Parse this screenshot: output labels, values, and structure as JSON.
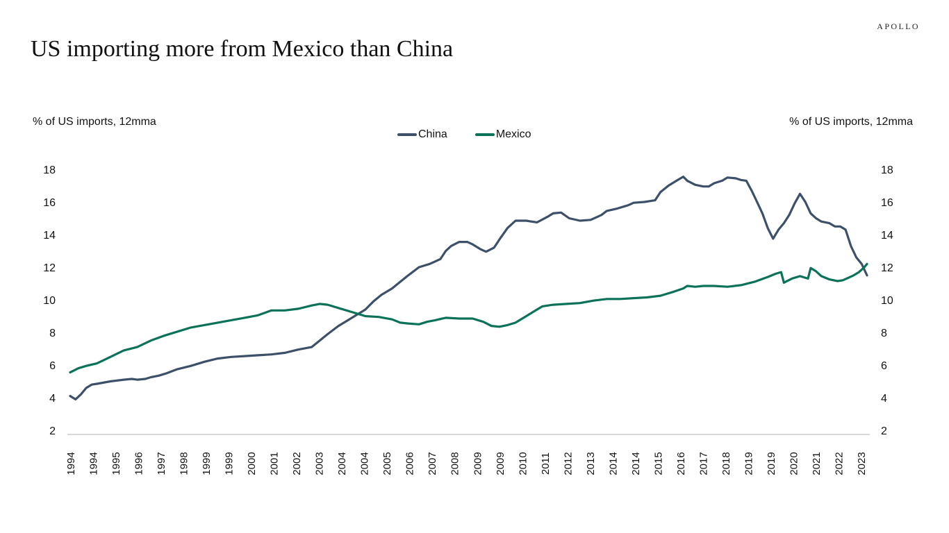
{
  "brand": "APOLLO",
  "colors": {
    "China": "#3c5069",
    "Mexico": "#0a7258"
  },
  "chart_data": {
    "type": "line",
    "title": "US importing more from Mexico than China",
    "ylabel_left": "% of US imports, 12mma",
    "ylabel_right": "% of US imports, 12mma",
    "ylim": [
      2,
      18
    ],
    "yticks": [
      2,
      4,
      6,
      8,
      10,
      12,
      14,
      16,
      18
    ],
    "xticklabels": [
      "1994",
      "1994",
      "1995",
      "1996",
      "1997",
      "1998",
      "1999",
      "1999",
      "2000",
      "2001",
      "2002",
      "2003",
      "2004",
      "2004",
      "2005",
      "2006",
      "2007",
      "2008",
      "2009",
      "2009",
      "2010",
      "2011",
      "2012",
      "2013",
      "2014",
      "2014",
      "2015",
      "2016",
      "2017",
      "2018",
      "2019",
      "2019",
      "2020",
      "2021",
      "2022",
      "2023"
    ],
    "xlim": [
      1994.0,
      2023.7
    ],
    "grid": false,
    "legend": "top-center",
    "series": [
      {
        "name": "China",
        "points": [
          [
            1994.0,
            4.1
          ],
          [
            1994.2,
            3.9
          ],
          [
            1994.4,
            4.2
          ],
          [
            1994.6,
            4.6
          ],
          [
            1994.8,
            4.8
          ],
          [
            1995.0,
            4.85
          ],
          [
            1995.5,
            5.0
          ],
          [
            1996.0,
            5.1
          ],
          [
            1996.3,
            5.15
          ],
          [
            1996.5,
            5.1
          ],
          [
            1996.8,
            5.15
          ],
          [
            1997.0,
            5.25
          ],
          [
            1997.3,
            5.35
          ],
          [
            1997.6,
            5.5
          ],
          [
            1998.0,
            5.75
          ],
          [
            1998.5,
            5.95
          ],
          [
            1999.0,
            6.2
          ],
          [
            1999.5,
            6.4
          ],
          [
            2000.0,
            6.5
          ],
          [
            2000.5,
            6.55
          ],
          [
            2001.0,
            6.6
          ],
          [
            2001.5,
            6.65
          ],
          [
            2002.0,
            6.75
          ],
          [
            2002.5,
            6.95
          ],
          [
            2003.0,
            7.1
          ],
          [
            2003.3,
            7.5
          ],
          [
            2003.6,
            7.9
          ],
          [
            2004.0,
            8.4
          ],
          [
            2004.3,
            8.7
          ],
          [
            2004.6,
            9.0
          ],
          [
            2005.0,
            9.4
          ],
          [
            2005.3,
            9.9
          ],
          [
            2005.6,
            10.3
          ],
          [
            2006.0,
            10.7
          ],
          [
            2006.3,
            11.1
          ],
          [
            2006.6,
            11.5
          ],
          [
            2007.0,
            12.0
          ],
          [
            2007.4,
            12.2
          ],
          [
            2007.8,
            12.5
          ],
          [
            2008.0,
            13.0
          ],
          [
            2008.2,
            13.3
          ],
          [
            2008.5,
            13.55
          ],
          [
            2008.8,
            13.55
          ],
          [
            2009.0,
            13.4
          ],
          [
            2009.3,
            13.1
          ],
          [
            2009.5,
            12.95
          ],
          [
            2009.8,
            13.2
          ],
          [
            2010.0,
            13.7
          ],
          [
            2010.3,
            14.4
          ],
          [
            2010.6,
            14.85
          ],
          [
            2011.0,
            14.85
          ],
          [
            2011.4,
            14.75
          ],
          [
            2011.8,
            15.1
          ],
          [
            2012.0,
            15.3
          ],
          [
            2012.3,
            15.35
          ],
          [
            2012.6,
            15.0
          ],
          [
            2013.0,
            14.85
          ],
          [
            2013.4,
            14.9
          ],
          [
            2013.8,
            15.2
          ],
          [
            2014.0,
            15.45
          ],
          [
            2014.4,
            15.6
          ],
          [
            2014.8,
            15.8
          ],
          [
            2015.0,
            15.95
          ],
          [
            2015.4,
            16.0
          ],
          [
            2015.8,
            16.1
          ],
          [
            2016.0,
            16.6
          ],
          [
            2016.3,
            17.0
          ],
          [
            2016.6,
            17.3
          ],
          [
            2016.85,
            17.55
          ],
          [
            2017.0,
            17.3
          ],
          [
            2017.3,
            17.05
          ],
          [
            2017.6,
            16.95
          ],
          [
            2017.8,
            16.95
          ],
          [
            2018.0,
            17.15
          ],
          [
            2018.3,
            17.3
          ],
          [
            2018.5,
            17.5
          ],
          [
            2018.8,
            17.45
          ],
          [
            2019.0,
            17.35
          ],
          [
            2019.2,
            17.3
          ],
          [
            2019.4,
            16.7
          ],
          [
            2019.6,
            16.0
          ],
          [
            2019.8,
            15.3
          ],
          [
            2020.0,
            14.4
          ],
          [
            2020.2,
            13.75
          ],
          [
            2020.4,
            14.3
          ],
          [
            2020.6,
            14.7
          ],
          [
            2020.8,
            15.2
          ],
          [
            2021.0,
            15.9
          ],
          [
            2021.2,
            16.5
          ],
          [
            2021.4,
            16.0
          ],
          [
            2021.6,
            15.3
          ],
          [
            2021.8,
            15.0
          ],
          [
            2022.0,
            14.8
          ],
          [
            2022.3,
            14.7
          ],
          [
            2022.5,
            14.5
          ],
          [
            2022.7,
            14.5
          ],
          [
            2022.9,
            14.3
          ],
          [
            2023.1,
            13.3
          ],
          [
            2023.3,
            12.6
          ],
          [
            2023.5,
            12.2
          ],
          [
            2023.7,
            11.5
          ]
        ]
      },
      {
        "name": "Mexico",
        "points": [
          [
            1994.0,
            5.55
          ],
          [
            1994.3,
            5.8
          ],
          [
            1994.6,
            5.95
          ],
          [
            1995.0,
            6.1
          ],
          [
            1995.5,
            6.5
          ],
          [
            1996.0,
            6.9
          ],
          [
            1996.5,
            7.1
          ],
          [
            1997.0,
            7.5
          ],
          [
            1997.5,
            7.8
          ],
          [
            1998.0,
            8.05
          ],
          [
            1998.5,
            8.3
          ],
          [
            1999.0,
            8.45
          ],
          [
            1999.5,
            8.6
          ],
          [
            2000.0,
            8.75
          ],
          [
            2000.5,
            8.9
          ],
          [
            2001.0,
            9.05
          ],
          [
            2001.5,
            9.35
          ],
          [
            2002.0,
            9.35
          ],
          [
            2002.5,
            9.45
          ],
          [
            2003.0,
            9.65
          ],
          [
            2003.3,
            9.75
          ],
          [
            2003.6,
            9.7
          ],
          [
            2004.0,
            9.5
          ],
          [
            2004.5,
            9.25
          ],
          [
            2005.0,
            9.0
          ],
          [
            2005.5,
            8.95
          ],
          [
            2006.0,
            8.8
          ],
          [
            2006.3,
            8.6
          ],
          [
            2006.6,
            8.55
          ],
          [
            2007.0,
            8.5
          ],
          [
            2007.3,
            8.65
          ],
          [
            2007.6,
            8.75
          ],
          [
            2008.0,
            8.9
          ],
          [
            2008.5,
            8.85
          ],
          [
            2009.0,
            8.85
          ],
          [
            2009.4,
            8.65
          ],
          [
            2009.7,
            8.4
          ],
          [
            2010.0,
            8.35
          ],
          [
            2010.3,
            8.45
          ],
          [
            2010.6,
            8.6
          ],
          [
            2011.0,
            9.0
          ],
          [
            2011.3,
            9.3
          ],
          [
            2011.6,
            9.6
          ],
          [
            2012.0,
            9.7
          ],
          [
            2012.5,
            9.75
          ],
          [
            2013.0,
            9.8
          ],
          [
            2013.5,
            9.95
          ],
          [
            2014.0,
            10.05
          ],
          [
            2014.5,
            10.05
          ],
          [
            2015.0,
            10.1
          ],
          [
            2015.5,
            10.15
          ],
          [
            2016.0,
            10.25
          ],
          [
            2016.5,
            10.5
          ],
          [
            2016.85,
            10.7
          ],
          [
            2017.0,
            10.85
          ],
          [
            2017.3,
            10.8
          ],
          [
            2017.6,
            10.85
          ],
          [
            2018.0,
            10.85
          ],
          [
            2018.5,
            10.8
          ],
          [
            2019.0,
            10.9
          ],
          [
            2019.5,
            11.1
          ],
          [
            2020.0,
            11.4
          ],
          [
            2020.3,
            11.6
          ],
          [
            2020.5,
            11.7
          ],
          [
            2020.6,
            11.05
          ],
          [
            2020.9,
            11.3
          ],
          [
            2021.2,
            11.45
          ],
          [
            2021.5,
            11.3
          ],
          [
            2021.6,
            11.95
          ],
          [
            2021.8,
            11.75
          ],
          [
            2022.0,
            11.45
          ],
          [
            2022.3,
            11.25
          ],
          [
            2022.6,
            11.15
          ],
          [
            2022.8,
            11.2
          ],
          [
            2023.0,
            11.35
          ],
          [
            2023.2,
            11.5
          ],
          [
            2023.4,
            11.7
          ],
          [
            2023.6,
            12.0
          ],
          [
            2023.7,
            12.2
          ]
        ]
      }
    ]
  }
}
